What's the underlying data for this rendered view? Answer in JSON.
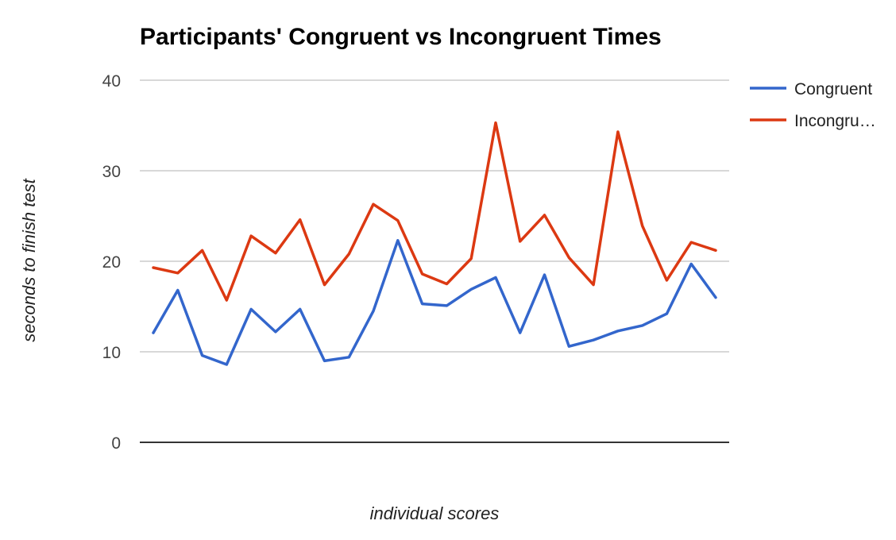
{
  "chart_data": {
    "type": "line",
    "title": "Participants' Congruent vs Incongruent Times",
    "xlabel": "individual scores",
    "ylabel": "seconds to finish test",
    "ylim": [
      0,
      40
    ],
    "yticks": [
      "0",
      "10",
      "20",
      "30",
      "40"
    ],
    "grid": true,
    "legend_position": "right",
    "x": [
      1,
      2,
      3,
      4,
      5,
      6,
      7,
      8,
      9,
      10,
      11,
      12,
      13,
      14,
      15,
      16,
      17,
      18,
      19,
      20,
      21,
      22,
      23,
      24
    ],
    "series": [
      {
        "name": "Congruent",
        "color": "#3366cc",
        "values": [
          12.1,
          16.8,
          9.6,
          8.6,
          14.7,
          12.2,
          14.7,
          9.0,
          9.4,
          14.5,
          22.3,
          15.3,
          15.1,
          16.9,
          18.2,
          12.1,
          18.5,
          10.6,
          11.3,
          12.3,
          12.9,
          14.2,
          19.7,
          16.0
        ]
      },
      {
        "name": "Incongru…",
        "color": "#dc3912",
        "values": [
          19.3,
          18.7,
          21.2,
          15.7,
          22.8,
          20.9,
          24.6,
          17.4,
          20.8,
          26.3,
          24.5,
          18.6,
          17.5,
          20.3,
          35.3,
          22.2,
          25.1,
          20.4,
          17.4,
          34.3,
          23.9,
          17.9,
          22.1,
          21.2
        ]
      }
    ]
  }
}
